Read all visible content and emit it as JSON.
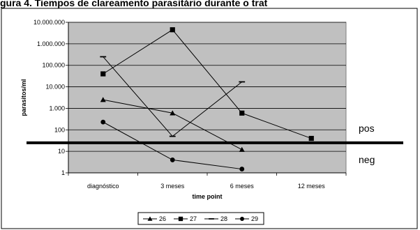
{
  "caption": "gura 4. Tiempos de clareamento parasitário durante o trat",
  "chart_data": {
    "type": "line",
    "categories": [
      "diagnóstico",
      "3 meses",
      "6 meses",
      "12 meses"
    ],
    "xlabel": "time point",
    "ylabel": "parasitos/ml",
    "yscale": "log",
    "ylim": [
      1,
      10000000
    ],
    "yticks": [
      "1",
      "10",
      "100",
      "1.000",
      "10.000",
      "100.000",
      "1.000.000",
      "10.000.000"
    ],
    "grid": true,
    "legend_position": "bottom",
    "series": [
      {
        "name": "26",
        "marker": "triangle",
        "values": [
          2500,
          600,
          12,
          null
        ]
      },
      {
        "name": "27",
        "marker": "square",
        "values": [
          40000,
          4500000,
          600,
          40
        ]
      },
      {
        "name": "28",
        "marker": "dash",
        "values": [
          250000,
          50,
          17000,
          null
        ]
      },
      {
        "name": "29",
        "marker": "circle",
        "values": [
          230,
          4,
          1.5,
          null
        ]
      }
    ],
    "threshold": {
      "value": 25,
      "label_above": "pos",
      "label_below": "neg"
    }
  }
}
